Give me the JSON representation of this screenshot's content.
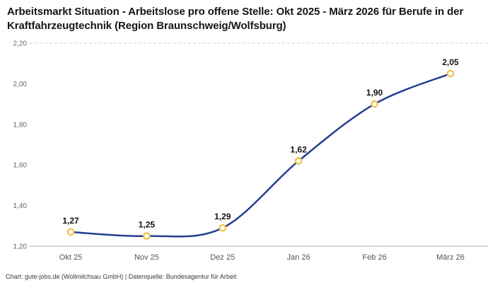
{
  "chart_data": {
    "type": "line",
    "title": "Arbeitsmarkt Situation - Arbeitslose pro offene Stelle: Okt 2025 - März 2026 für Berufe in der Kraftfahrzeugtechnik (Region Braunschweig/Wolfsburg)",
    "categories": [
      "Okt 25",
      "Nov 25",
      "Dez 25",
      "Jan 26",
      "Feb 26",
      "März 26"
    ],
    "values": [
      1.27,
      1.25,
      1.29,
      1.62,
      1.9,
      2.05
    ],
    "labels": [
      "1,27",
      "1,25",
      "1,29",
      "1,62",
      "1,90",
      "2,05"
    ],
    "ylim": [
      1.2,
      2.2
    ],
    "yticks": [
      1.2,
      1.4,
      1.6,
      1.8,
      2.0,
      2.2
    ],
    "ytick_labels": [
      "1,20",
      "1,40",
      "1,60",
      "1,80",
      "2,00",
      "2,20"
    ],
    "xlabel": "",
    "ylabel": "",
    "grid": "top-dashed-and-baseline-only",
    "legend": "none",
    "line_color": "#243e8f",
    "marker_stroke_color": "#eec243",
    "marker_fill_color": "#ffffff",
    "value_label_color": "#121212",
    "tick_label_color": "#666666",
    "gridline_color": "#cccccc",
    "baseline_color": "#aaaaaa"
  },
  "footer": {
    "credit": "Chart: gute-jobs.de (Wollmilchsau GmbH) | Datenquelle: Bundesagentur für Arbeit"
  }
}
